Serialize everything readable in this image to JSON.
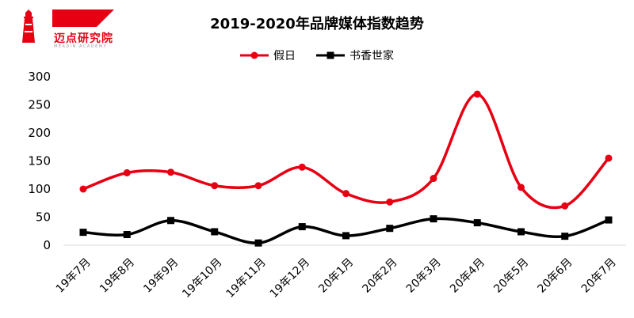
{
  "brand": {
    "name": "迈点研究院",
    "sub": "MEADIN ACADEMY",
    "red": "#e60012"
  },
  "chart_data": {
    "type": "line",
    "title": "2019-2020年品牌媒体指数趋势",
    "xlabel": "",
    "ylabel": "",
    "categories": [
      "19年7月",
      "19年8月",
      "19年9月",
      "19年10月",
      "19年11月",
      "19年12月",
      "20年1月",
      "20年2月",
      "20年3月",
      "20年4月",
      "20年5月",
      "20年6月",
      "20年7月"
    ],
    "ylim": [
      0,
      300
    ],
    "yticks": [
      0,
      50,
      100,
      150,
      200,
      250,
      300
    ],
    "grid": false,
    "legend_position": "top-center",
    "series": [
      {
        "name": "假日",
        "color": "#e60012",
        "marker": "circle",
        "values": [
          100,
          129,
          130,
          106,
          106,
          139,
          92,
          77,
          119,
          269,
          103,
          70,
          155
        ]
      },
      {
        "name": "书香世家",
        "color": "#000000",
        "marker": "square",
        "values": [
          23,
          19,
          44,
          24,
          4,
          33,
          17,
          30,
          47,
          40,
          24,
          16,
          45
        ]
      }
    ]
  }
}
